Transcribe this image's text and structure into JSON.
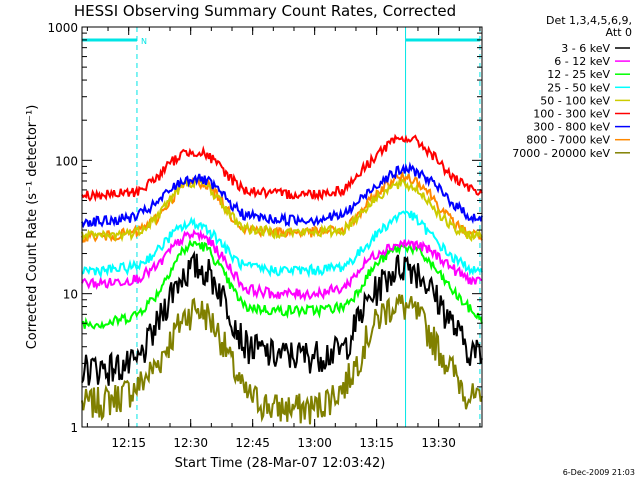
{
  "chart_data": {
    "type": "line",
    "title": "HESSI Observing Summary Count Rates, Corrected",
    "xlabel": "Start Time (28-Mar-07 12:03:42)",
    "ylabel": "Corrected Count Rate (s⁻¹ detector⁻¹)",
    "yscale": "log",
    "ylim": [
      1,
      1000
    ],
    "xlim": [
      "12:03:42",
      "13:40:30"
    ],
    "x_ticks": [
      "12:15",
      "12:30",
      "12:45",
      "13:00",
      "13:15",
      "13:30"
    ],
    "y_ticks": [
      "1",
      "10",
      "100",
      "1000"
    ],
    "legend_position": "right",
    "legend_header": [
      "Det 1,3,4,5,6,9,",
      "Att 0"
    ],
    "footer_date": "6-Dec-2009 21:03",
    "annotation_label": "N",
    "shading_color": "#00e5e5",
    "x_points": [
      "12:03:42",
      "12:10",
      "12:17",
      "12:22",
      "12:25",
      "12:28",
      "12:31",
      "12:34",
      "12:37",
      "12:40",
      "12:43",
      "12:50",
      "13:00",
      "13:07",
      "13:10",
      "13:13",
      "13:16",
      "13:19",
      "13:22",
      "13:25",
      "13:28",
      "13:31",
      "13:34",
      "13:37",
      "13:40"
    ],
    "series": [
      {
        "name": "3 - 6 keV",
        "color": "#000000",
        "values": [
          2.8,
          2.8,
          3.0,
          6,
          10,
          14,
          16,
          15,
          11,
          7,
          4.2,
          3.5,
          3.5,
          3.8,
          6,
          9,
          12,
          15,
          17,
          15,
          11,
          8,
          5.5,
          4,
          3.5
        ]
      },
      {
        "name": "6 - 12 keV",
        "color": "#ff00ff",
        "values": [
          12,
          12,
          13,
          16,
          21,
          26,
          28,
          26,
          20,
          15,
          11,
          10,
          10,
          11,
          14,
          18,
          21,
          23,
          24,
          23,
          21,
          18,
          15,
          13,
          12
        ]
      },
      {
        "name": "12 - 25 keV",
        "color": "#00ff00",
        "values": [
          6,
          6,
          7,
          10,
          15,
          21,
          24,
          22,
          16,
          11,
          8,
          7.5,
          7.5,
          8,
          10,
          14,
          18,
          21,
          23,
          21,
          17,
          13,
          10,
          8,
          6.5
        ]
      },
      {
        "name": "25 - 50 keV",
        "color": "#00ffff",
        "values": [
          15,
          15,
          16,
          21,
          27,
          32,
          34,
          31,
          25,
          19,
          16,
          15,
          15,
          16,
          19,
          24,
          30,
          36,
          42,
          35,
          28,
          22,
          18,
          16,
          14
        ]
      },
      {
        "name": "50 - 100 keV",
        "color": "#cccc00",
        "values": [
          27,
          27,
          29,
          38,
          52,
          64,
          70,
          65,
          50,
          38,
          31,
          29,
          29,
          30,
          37,
          46,
          56,
          64,
          66,
          60,
          48,
          37,
          30,
          28,
          27
        ]
      },
      {
        "name": "100 - 300 keV",
        "color": "#ff0000",
        "values": [
          55,
          55,
          58,
          75,
          95,
          112,
          118,
          110,
          90,
          72,
          60,
          56,
          56,
          60,
          75,
          95,
          118,
          138,
          148,
          138,
          115,
          90,
          72,
          62,
          56
        ]
      },
      {
        "name": "300 - 800 keV",
        "color": "#0000ff",
        "values": [
          35,
          35,
          38,
          48,
          60,
          70,
          74,
          70,
          58,
          46,
          39,
          36,
          36,
          39,
          47,
          58,
          70,
          80,
          86,
          82,
          70,
          57,
          46,
          39,
          36
        ]
      },
      {
        "name": "800 - 7000 keV",
        "color": "#ff8800",
        "values": [
          27,
          27,
          29,
          37,
          50,
          64,
          70,
          66,
          52,
          38,
          31,
          29,
          29,
          30,
          37,
          48,
          60,
          72,
          76,
          70,
          56,
          42,
          33,
          29,
          27
        ]
      },
      {
        "name": "7000 - 20000 keV",
        "color": "#808000",
        "values": [
          1.5,
          1.6,
          2.0,
          3.0,
          4.5,
          6.5,
          8,
          7,
          5,
          3,
          1.8,
          1.4,
          1.4,
          2.0,
          3.0,
          5,
          7,
          8.5,
          8,
          7,
          5,
          3.5,
          2.5,
          1.8,
          1.5
        ]
      }
    ]
  }
}
